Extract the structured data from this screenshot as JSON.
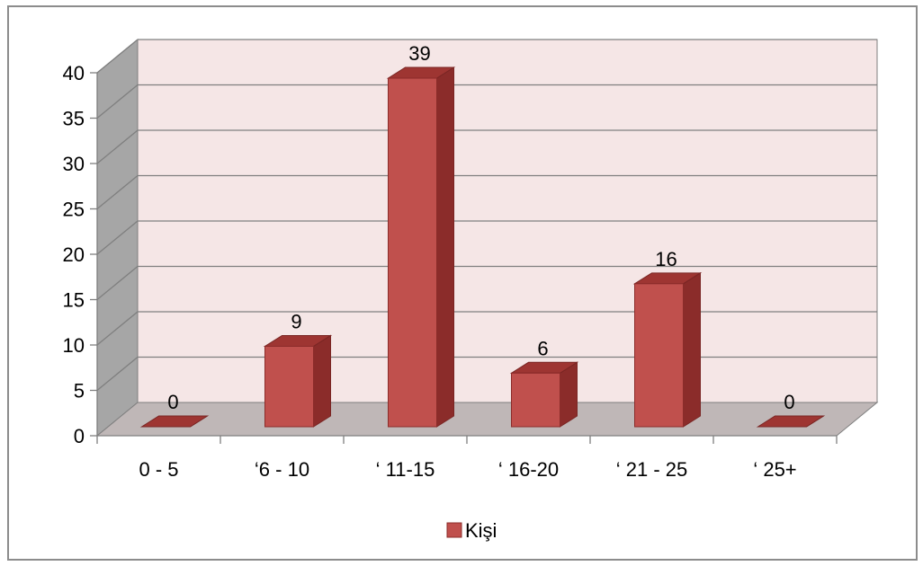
{
  "chart_data": {
    "type": "bar",
    "categories": [
      "0 - 5",
      "‘6 - 10",
      "‘ 11-15",
      "‘ 16-20",
      "‘ 21 - 25",
      "‘ 25+"
    ],
    "series": [
      {
        "name": "Kişi",
        "values": [
          0,
          9,
          39,
          6,
          16,
          0
        ]
      }
    ],
    "ylim": [
      0,
      40
    ],
    "yticks": [
      0,
      5,
      10,
      15,
      20,
      25,
      30,
      35,
      40
    ],
    "ytick_labels": [
      "0",
      "5",
      "10",
      "15",
      "20",
      "25",
      "30",
      "35",
      "40"
    ],
    "data_labels": [
      "0",
      "9",
      "39",
      "6",
      "16",
      "0"
    ],
    "grid": true,
    "legend": {
      "position": "bottom",
      "label": "Kişi"
    },
    "colors": {
      "bar_front": "#C0504D",
      "bar_side": "#8B2C2A",
      "bar_top": "#9E3532",
      "back_wall": "#F5E6E6",
      "side_wall": "#A6A6A6",
      "floor": "#BFB7B7"
    }
  }
}
